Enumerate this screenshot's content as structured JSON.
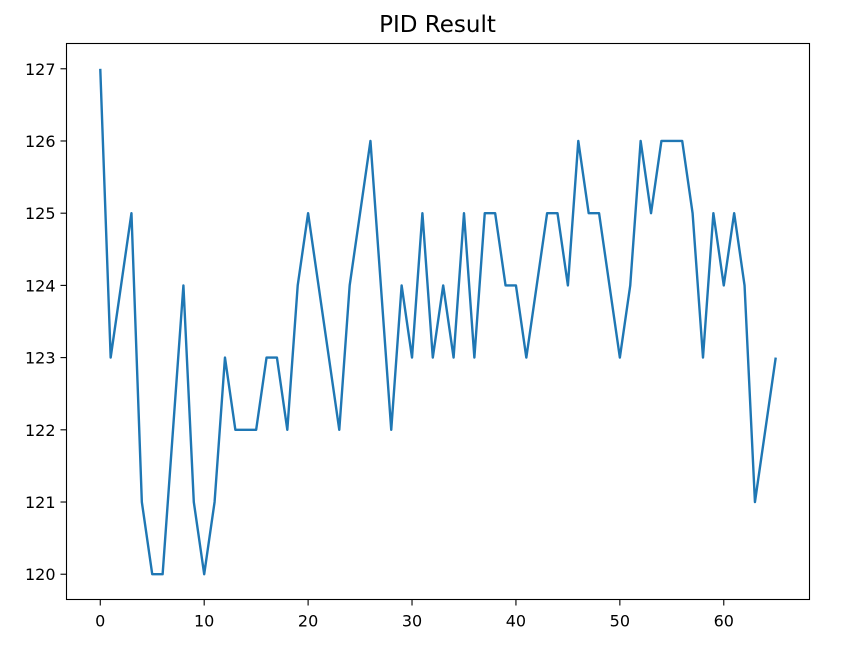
{
  "chart_data": {
    "type": "line",
    "title": "PID Result",
    "xlabel": "",
    "ylabel": "",
    "xlim": [
      -3.25,
      68.25
    ],
    "ylim": [
      119.65,
      127.35
    ],
    "x_ticks": [
      0,
      10,
      20,
      30,
      40,
      50,
      60
    ],
    "y_ticks": [
      120,
      121,
      122,
      123,
      124,
      125,
      126,
      127
    ],
    "grid": false,
    "legend": "none",
    "series": [
      {
        "color": "#1f77b4",
        "x": [
          0,
          1,
          2,
          3,
          4,
          5,
          6,
          7,
          8,
          9,
          10,
          11,
          12,
          13,
          14,
          15,
          16,
          17,
          18,
          19,
          20,
          21,
          22,
          23,
          24,
          25,
          26,
          27,
          28,
          29,
          30,
          31,
          32,
          33,
          34,
          35,
          36,
          37,
          38,
          39,
          40,
          41,
          42,
          43,
          44,
          45,
          46,
          47,
          48,
          49,
          50,
          51,
          52,
          53,
          54,
          55,
          56,
          57,
          58,
          59,
          60,
          61,
          62,
          63,
          64,
          65
        ],
        "values": [
          127,
          123,
          124,
          125,
          121,
          120,
          120,
          122,
          124,
          121,
          120,
          121,
          123,
          122,
          122,
          122,
          123,
          123,
          122,
          124,
          125,
          124,
          123,
          122,
          124,
          125,
          126,
          124,
          122,
          124,
          123,
          125,
          123,
          124,
          123,
          125,
          123,
          125,
          125,
          124,
          124,
          123,
          124,
          125,
          125,
          124,
          126,
          125,
          125,
          124,
          123,
          124,
          126,
          125,
          126,
          126,
          126,
          125,
          123,
          125,
          124,
          125,
          124,
          121,
          122,
          123
        ]
      }
    ]
  }
}
